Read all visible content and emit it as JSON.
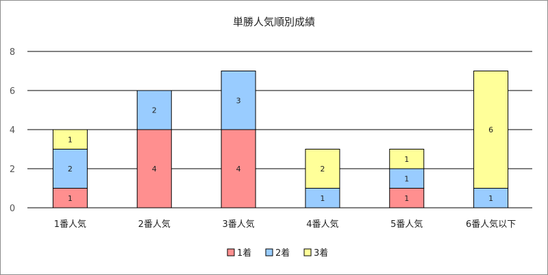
{
  "chart_data": {
    "type": "bar",
    "stacked": true,
    "title": "単勝人気順別成績",
    "categories": [
      "1番人気",
      "2番人気",
      "3番人気",
      "4番人気",
      "5番人気",
      "6番人気以下"
    ],
    "series": [
      {
        "name": "1着",
        "color": "#ff8f8f",
        "values": [
          1,
          4,
          4,
          0,
          1,
          0
        ]
      },
      {
        "name": "2着",
        "color": "#99ccff",
        "values": [
          2,
          2,
          3,
          1,
          1,
          1
        ]
      },
      {
        "name": "3着",
        "color": "#ffff99",
        "values": [
          1,
          0,
          0,
          2,
          1,
          6
        ]
      }
    ],
    "ylim": [
      0,
      8
    ],
    "yticks": [
      0,
      2,
      4,
      6,
      8
    ],
    "grid": true,
    "legend_position": "bottom",
    "xlabel": "",
    "ylabel": ""
  }
}
